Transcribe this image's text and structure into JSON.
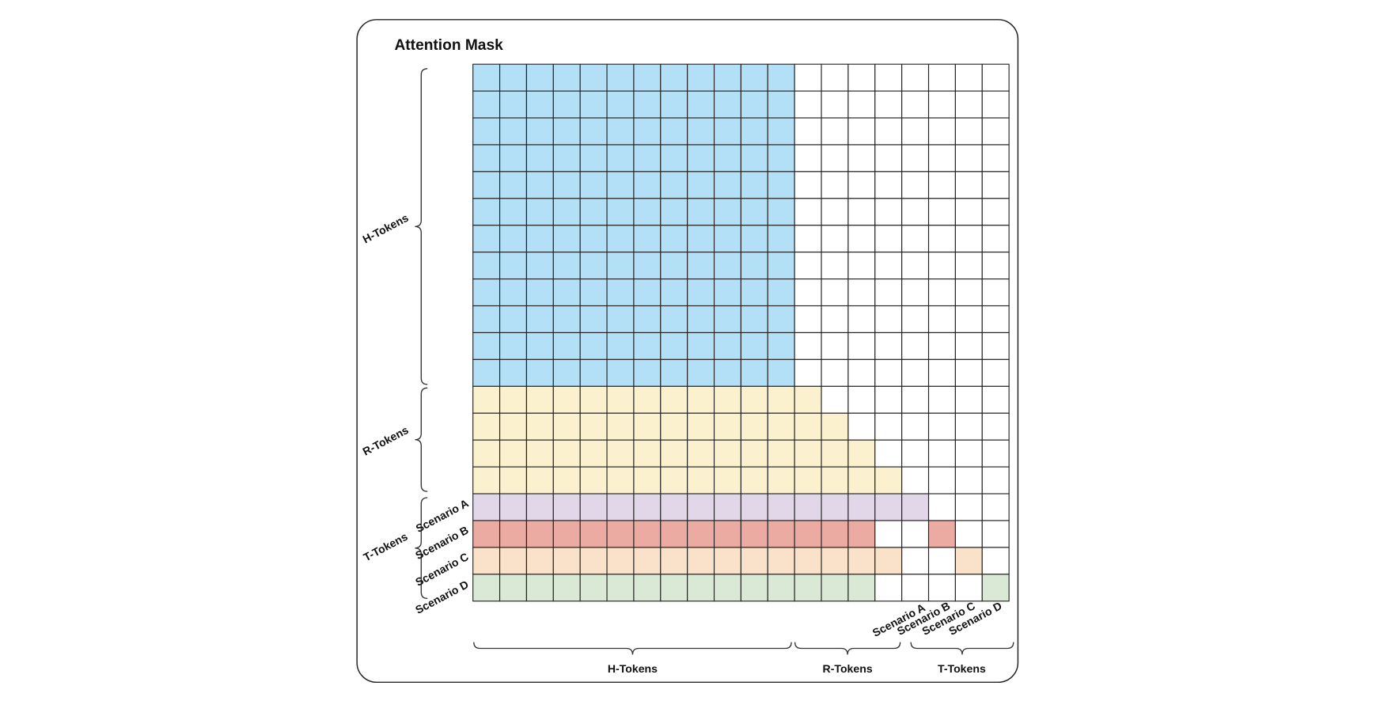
{
  "title": "Attention Mask",
  "row_groups": [
    "H-Tokens",
    "R-Tokens",
    "T-Tokens"
  ],
  "row_scenarios": [
    "Scenario A",
    "Scenario B",
    "Scenario C",
    "Scenario D"
  ],
  "column_groups": [
    "H-Tokens",
    "R-Tokens",
    "T-Tokens"
  ],
  "column_scenarios": [
    "Scenario A",
    "Scenario B",
    "Scenario C",
    "Scenario D"
  ]
}
